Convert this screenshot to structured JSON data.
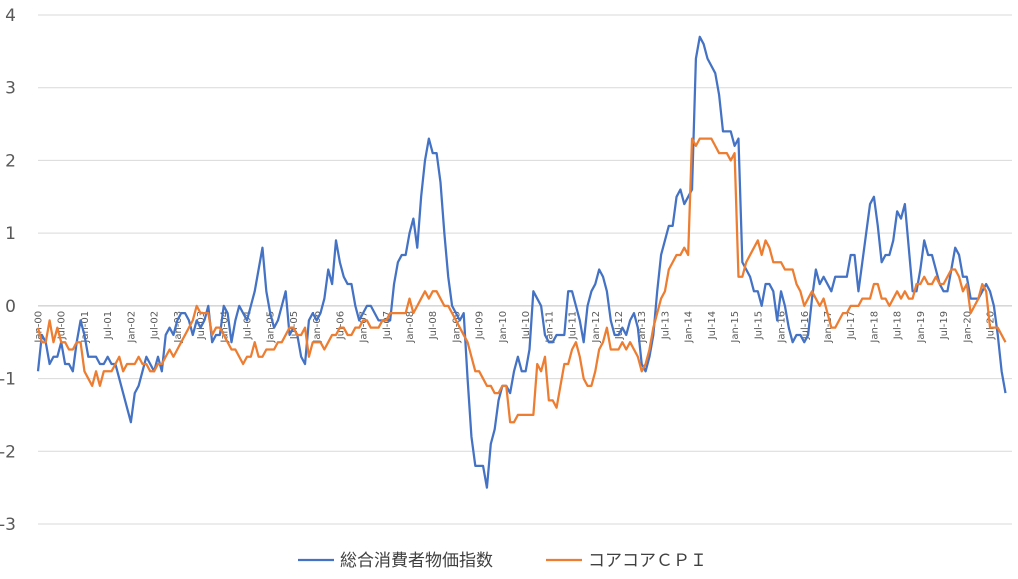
{
  "chart_data": {
    "type": "line",
    "title": "",
    "xlabel": "",
    "ylabel": "",
    "ylim": [
      -3,
      4
    ],
    "yticks": [
      -3,
      -2,
      -1,
      0,
      1,
      2,
      3,
      4
    ],
    "grid": "horizontal",
    "legend_position": "bottom",
    "start": "2000-01",
    "x_tick_labels": [
      "Jan-00",
      "Jul-00",
      "Jan-01",
      "Jul-01",
      "Jan-02",
      "Jul-02",
      "Jan-03",
      "Jul-03",
      "Jan-04",
      "Jul-04",
      "Jan-05",
      "Jul-05",
      "Jan-06",
      "Jul-06",
      "Jan-07",
      "Jul-07",
      "Jan-08",
      "Jul-08",
      "Jan-09",
      "Jul-09",
      "Jan-10",
      "Jul-10",
      "Jan-11",
      "Jul-11",
      "Jan-12",
      "Jul-12",
      "Jan-13",
      "Jul-13",
      "Jan-14",
      "Jul-14",
      "Jan-15",
      "Jul-15",
      "Jan-16",
      "Jul-16",
      "Jan-17",
      "Jul-17",
      "Jan-18",
      "Jul-18",
      "Jan-19",
      "Jul-19",
      "Jan-20",
      "Jul-20"
    ],
    "series": [
      {
        "name": "総合消費者物価指数",
        "color": "#4472c4",
        "values": [
          -0.9,
          -0.4,
          -0.5,
          -0.8,
          -0.7,
          -0.7,
          -0.5,
          -0.8,
          -0.8,
          -0.9,
          -0.5,
          -0.2,
          -0.4,
          -0.7,
          -0.7,
          -0.7,
          -0.8,
          -0.8,
          -0.7,
          -0.8,
          -0.8,
          -1.0,
          -1.2,
          -1.4,
          -1.6,
          -1.2,
          -1.1,
          -0.9,
          -0.7,
          -0.8,
          -0.9,
          -0.7,
          -0.9,
          -0.4,
          -0.3,
          -0.4,
          -0.2,
          -0.1,
          -0.1,
          -0.2,
          -0.4,
          -0.2,
          -0.3,
          -0.2,
          0.0,
          -0.5,
          -0.4,
          -0.4,
          0.0,
          -0.1,
          -0.5,
          -0.2,
          0.0,
          -0.1,
          -0.2,
          0.0,
          0.2,
          0.5,
          0.8,
          0.2,
          -0.1,
          -0.3,
          -0.2,
          0.0,
          0.2,
          -0.4,
          -0.3,
          -0.4,
          -0.7,
          -0.8,
          -0.2,
          -0.1,
          -0.2,
          -0.1,
          0.1,
          0.5,
          0.3,
          0.9,
          0.6,
          0.4,
          0.3,
          0.3,
          0.0,
          -0.2,
          -0.1,
          0.0,
          0.0,
          -0.1,
          -0.2,
          -0.2,
          -0.2,
          -0.2,
          0.3,
          0.6,
          0.7,
          0.7,
          1.0,
          1.2,
          0.8,
          1.5,
          2.0,
          2.3,
          2.1,
          2.1,
          1.7,
          1.0,
          0.4,
          0.0,
          -0.1,
          -0.2,
          -0.1,
          -1.0,
          -1.8,
          -2.2,
          -2.2,
          -2.2,
          -2.5,
          -1.9,
          -1.7,
          -1.3,
          -1.1,
          -1.1,
          -1.2,
          -0.9,
          -0.7,
          -0.9,
          -0.9,
          -0.6,
          0.2,
          0.1,
          0.0,
          -0.4,
          -0.5,
          -0.5,
          -0.4,
          -0.4,
          -0.4,
          0.2,
          0.2,
          0.0,
          -0.2,
          -0.5,
          0.0,
          0.2,
          0.3,
          0.5,
          0.4,
          0.2,
          -0.2,
          -0.4,
          -0.4,
          -0.3,
          -0.4,
          -0.2,
          -0.1,
          -0.3,
          -0.8,
          -0.9,
          -0.7,
          -0.4,
          0.2,
          0.7,
          0.9,
          1.1,
          1.1,
          1.5,
          1.6,
          1.4,
          1.5,
          1.6,
          3.4,
          3.7,
          3.6,
          3.4,
          3.3,
          3.2,
          2.9,
          2.4,
          2.4,
          2.4,
          2.2,
          2.3,
          0.6,
          0.5,
          0.4,
          0.2,
          0.2,
          0.0,
          0.3,
          0.3,
          0.2,
          -0.2,
          0.2,
          0.0,
          -0.3,
          -0.5,
          -0.4,
          -0.4,
          -0.5,
          -0.4,
          0.1,
          0.5,
          0.3,
          0.4,
          0.3,
          0.2,
          0.4,
          0.4,
          0.4,
          0.4,
          0.7,
          0.7,
          0.2,
          0.6,
          1.0,
          1.4,
          1.5,
          1.1,
          0.6,
          0.7,
          0.7,
          0.9,
          1.3,
          1.2,
          1.4,
          0.8,
          0.2,
          0.2,
          0.5,
          0.9,
          0.7,
          0.7,
          0.5,
          0.3,
          0.2,
          0.2,
          0.5,
          0.8,
          0.7,
          0.4,
          0.4,
          0.1,
          0.1,
          0.1,
          0.2,
          0.3,
          0.2,
          0.0,
          -0.4,
          -0.9,
          -1.2
        ]
      },
      {
        "name": "コアコアＣＰＩ",
        "color": "#ed7d31",
        "values": [
          -0.3,
          -0.5,
          -0.5,
          -0.2,
          -0.5,
          -0.3,
          -0.5,
          -0.5,
          -0.6,
          -0.6,
          -0.5,
          -0.5,
          -0.9,
          -1.0,
          -1.1,
          -0.9,
          -1.1,
          -0.9,
          -0.9,
          -0.9,
          -0.8,
          -0.7,
          -0.9,
          -0.8,
          -0.8,
          -0.8,
          -0.7,
          -0.8,
          -0.8,
          -0.9,
          -0.9,
          -0.8,
          -0.8,
          -0.7,
          -0.6,
          -0.7,
          -0.6,
          -0.5,
          -0.4,
          -0.3,
          -0.2,
          0.0,
          -0.1,
          -0.1,
          -0.1,
          -0.4,
          -0.3,
          -0.3,
          -0.4,
          -0.5,
          -0.6,
          -0.6,
          -0.7,
          -0.8,
          -0.7,
          -0.7,
          -0.5,
          -0.7,
          -0.7,
          -0.6,
          -0.6,
          -0.6,
          -0.5,
          -0.5,
          -0.4,
          -0.3,
          -0.3,
          -0.4,
          -0.4,
          -0.3,
          -0.7,
          -0.5,
          -0.5,
          -0.5,
          -0.6,
          -0.5,
          -0.4,
          -0.4,
          -0.3,
          -0.3,
          -0.4,
          -0.4,
          -0.3,
          -0.3,
          -0.2,
          -0.2,
          -0.3,
          -0.3,
          -0.3,
          -0.2,
          -0.2,
          -0.1,
          -0.1,
          -0.1,
          -0.1,
          -0.1,
          0.1,
          -0.1,
          0.0,
          0.1,
          0.2,
          0.1,
          0.2,
          0.2,
          0.1,
          0.0,
          0.0,
          -0.1,
          -0.2,
          -0.3,
          -0.4,
          -0.5,
          -0.7,
          -0.9,
          -0.9,
          -1.0,
          -1.1,
          -1.1,
          -1.2,
          -1.2,
          -1.1,
          -1.1,
          -1.6,
          -1.6,
          -1.5,
          -1.5,
          -1.5,
          -1.5,
          -1.5,
          -0.8,
          -0.9,
          -0.7,
          -1.3,
          -1.3,
          -1.4,
          -1.1,
          -0.8,
          -0.8,
          -0.6,
          -0.5,
          -0.7,
          -1.0,
          -1.1,
          -1.1,
          -0.9,
          -0.6,
          -0.5,
          -0.3,
          -0.6,
          -0.6,
          -0.6,
          -0.5,
          -0.6,
          -0.5,
          -0.6,
          -0.7,
          -0.9,
          -0.8,
          -0.6,
          -0.3,
          -0.1,
          0.1,
          0.2,
          0.5,
          0.6,
          0.7,
          0.7,
          0.8,
          0.7,
          2.3,
          2.2,
          2.3,
          2.3,
          2.3,
          2.3,
          2.2,
          2.1,
          2.1,
          2.1,
          2.0,
          2.1,
          0.4,
          0.4,
          0.6,
          0.7,
          0.8,
          0.9,
          0.7,
          0.9,
          0.8,
          0.6,
          0.6,
          0.6,
          0.5,
          0.5,
          0.5,
          0.3,
          0.2,
          0.0,
          0.1,
          0.2,
          0.1,
          0.0,
          0.1,
          -0.1,
          -0.3,
          -0.3,
          -0.2,
          -0.1,
          -0.1,
          0.0,
          0.0,
          0.0,
          0.1,
          0.1,
          0.1,
          0.3,
          0.3,
          0.1,
          0.1,
          0.0,
          0.1,
          0.2,
          0.1,
          0.2,
          0.1,
          0.1,
          0.3,
          0.3,
          0.4,
          0.3,
          0.3,
          0.4,
          0.3,
          0.3,
          0.4,
          0.5,
          0.5,
          0.4,
          0.2,
          0.3,
          -0.1,
          0.0,
          0.1,
          0.3,
          0.2,
          -0.3,
          -0.3,
          -0.3,
          -0.4,
          -0.5
        ]
      }
    ]
  }
}
